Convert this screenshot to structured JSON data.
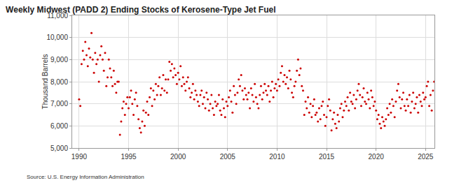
{
  "chart_data": {
    "type": "scatter",
    "title": "Weekly Midwest (PADD 2) Ending Stocks of Kerosene-Type Jet Fuel",
    "y_label": "Thousand Barrels",
    "annotations": [
      "Source: U.S. Energy Information Administration"
    ],
    "color": "#cc0000",
    "marker": "circle",
    "grid": true,
    "xlim": [
      1989.3,
      2025.9
    ],
    "xticks": [
      1990,
      1995,
      2000,
      2005,
      2010,
      2015,
      2020,
      2025
    ],
    "ylim": [
      5000,
      11000
    ],
    "yticks": [
      {
        "value": 5000,
        "label": "5,000"
      },
      {
        "value": 6000,
        "label": "6,000"
      },
      {
        "value": 7000,
        "label": "7,000"
      },
      {
        "value": 8000,
        "label": "8,000"
      },
      {
        "value": 9000,
        "label": "9,000"
      },
      {
        "value": 10000,
        "label": "10,000"
      },
      {
        "value": 11000,
        "label": "11,000"
      }
    ],
    "x": [
      1990,
      1990.125,
      1990.25,
      1990.375,
      1990.5,
      1990.625,
      1990.75,
      1990.875,
      1991,
      1991.125,
      1991.25,
      1991.375,
      1991.5,
      1991.625,
      1991.75,
      1991.875,
      1992,
      1992.125,
      1992.25,
      1992.375,
      1992.5,
      1992.625,
      1992.75,
      1992.875,
      1993,
      1993.125,
      1993.25,
      1993.375,
      1993.5,
      1993.625,
      1993.75,
      1993.875,
      1994,
      1994.125,
      1994.25,
      1994.375,
      1994.5,
      1994.625,
      1994.75,
      1994.875,
      1995,
      1995.125,
      1995.25,
      1995.375,
      1995.5,
      1995.625,
      1995.75,
      1995.875,
      1996,
      1996.125,
      1996.25,
      1996.375,
      1996.5,
      1996.625,
      1996.75,
      1996.875,
      1997,
      1997.125,
      1997.25,
      1997.375,
      1997.5,
      1997.625,
      1997.75,
      1997.875,
      1998,
      1998.125,
      1998.25,
      1998.375,
      1998.5,
      1998.625,
      1998.75,
      1998.875,
      1999,
      1999.125,
      1999.25,
      1999.375,
      1999.5,
      1999.625,
      1999.75,
      1999.875,
      2000,
      2000.125,
      2000.25,
      2000.375,
      2000.5,
      2000.625,
      2000.75,
      2000.875,
      2001,
      2001.125,
      2001.25,
      2001.375,
      2001.5,
      2001.625,
      2001.75,
      2001.875,
      2002,
      2002.125,
      2002.25,
      2002.375,
      2002.5,
      2002.625,
      2002.75,
      2002.875,
      2003,
      2003.125,
      2003.25,
      2003.375,
      2003.5,
      2003.625,
      2003.75,
      2003.875,
      2004,
      2004.125,
      2004.25,
      2004.375,
      2004.5,
      2004.625,
      2004.75,
      2004.875,
      2005,
      2005.125,
      2005.25,
      2005.375,
      2005.5,
      2005.625,
      2005.75,
      2005.875,
      2006,
      2006.125,
      2006.25,
      2006.375,
      2006.5,
      2006.625,
      2006.75,
      2006.875,
      2007,
      2007.125,
      2007.25,
      2007.375,
      2007.5,
      2007.625,
      2007.75,
      2007.875,
      2008,
      2008.125,
      2008.25,
      2008.375,
      2008.5,
      2008.625,
      2008.75,
      2008.875,
      2009,
      2009.125,
      2009.25,
      2009.375,
      2009.5,
      2009.625,
      2009.75,
      2009.875,
      2010,
      2010.125,
      2010.25,
      2010.375,
      2010.5,
      2010.625,
      2010.75,
      2010.875,
      2011,
      2011.125,
      2011.25,
      2011.375,
      2011.5,
      2011.625,
      2011.75,
      2011.875,
      2012,
      2012.125,
      2012.25,
      2012.375,
      2012.5,
      2012.625,
      2012.75,
      2012.875,
      2013,
      2013.125,
      2013.25,
      2013.375,
      2013.5,
      2013.625,
      2013.75,
      2013.875,
      2014,
      2014.125,
      2014.25,
      2014.375,
      2014.5,
      2014.625,
      2014.75,
      2014.875,
      2015,
      2015.125,
      2015.25,
      2015.375,
      2015.5,
      2015.625,
      2015.75,
      2015.875,
      2016,
      2016.125,
      2016.25,
      2016.375,
      2016.5,
      2016.625,
      2016.75,
      2016.875,
      2017,
      2017.125,
      2017.25,
      2017.375,
      2017.5,
      2017.625,
      2017.75,
      2017.875,
      2018,
      2018.125,
      2018.25,
      2018.375,
      2018.5,
      2018.625,
      2018.75,
      2018.875,
      2019,
      2019.125,
      2019.25,
      2019.375,
      2019.5,
      2019.625,
      2019.75,
      2019.875,
      2020,
      2020.125,
      2020.25,
      2020.375,
      2020.5,
      2020.625,
      2020.75,
      2020.875,
      2021,
      2021.125,
      2021.25,
      2021.375,
      2021.5,
      2021.625,
      2021.75,
      2021.875,
      2022,
      2022.125,
      2022.25,
      2022.375,
      2022.5,
      2022.625,
      2022.75,
      2022.875,
      2023,
      2023.125,
      2023.25,
      2023.375,
      2023.5,
      2023.625,
      2023.75,
      2023.875,
      2024,
      2024.125,
      2024.25,
      2024.375,
      2024.5,
      2024.625,
      2024.75,
      2024.875,
      2025,
      2025.125,
      2025.25,
      2025.375,
      2025.5,
      2025.625,
      2025.75,
      2025.875
    ],
    "values": [
      7200,
      6900,
      8800,
      9400,
      9000,
      9800,
      9200,
      8700,
      9500,
      9100,
      10200,
      9000,
      8400,
      9300,
      8800,
      9000,
      8000,
      9200,
      9600,
      9000,
      8500,
      9300,
      7800,
      8200,
      9000,
      8600,
      8200,
      7800,
      8500,
      7900,
      7500,
      8000,
      8000,
      5600,
      6200,
      6800,
      7100,
      6500,
      7000,
      7300,
      6800,
      7300,
      7600,
      7000,
      6500,
      7200,
      7500,
      6900,
      6300,
      5900,
      5700,
      6200,
      6700,
      6000,
      6600,
      7100,
      6500,
      7300,
      7700,
      6900,
      7600,
      7200,
      7900,
      7400,
      7800,
      8200,
      7400,
      7700,
      8300,
      7600,
      8100,
      7500,
      8100,
      8900,
      8500,
      8800,
      8200,
      8600,
      8300,
      7900,
      8400,
      8100,
      8700,
      7800,
      8200,
      7900,
      7600,
      8000,
      8200,
      7700,
      7300,
      7500,
      7900,
      7200,
      7600,
      7400,
      7100,
      6900,
      7400,
      7600,
      7000,
      7300,
      6800,
      7500,
      7200,
      6700,
      7000,
      7400,
      6800,
      6500,
      7100,
      6900,
      7000,
      7400,
      6700,
      6500,
      7200,
      6800,
      6400,
      7100,
      6900,
      7300,
      7600,
      7100,
      6600,
      7800,
      7400,
      7000,
      7500,
      8100,
      7800,
      8300,
      7600,
      7200,
      7700,
      7400,
      7200,
      7500,
      6800,
      7700,
      7400,
      7100,
      7900,
      7300,
      7000,
      6800,
      7400,
      7800,
      7200,
      7500,
      7900,
      7600,
      7400,
      7800,
      7100,
      7600,
      8000,
      7300,
      7700,
      7900,
      7600,
      8100,
      7800,
      8400,
      8700,
      8000,
      8300,
      7900,
      8200,
      7700,
      8500,
      8100,
      7500,
      7300,
      7800,
      8000,
      8500,
      9000,
      8300,
      8600,
      7800,
      7600,
      6500,
      7100,
      6800,
      7300,
      6600,
      7000,
      6400,
      6900,
      7200,
      6500,
      6600,
      6200,
      6800,
      6300,
      6900,
      7100,
      6500,
      6000,
      6400,
      6900,
      7200,
      6700,
      5800,
      6300,
      6600,
      6100,
      5900,
      6500,
      6200,
      6800,
      7000,
      6400,
      6700,
      7100,
      6900,
      7300,
      6700,
      7500,
      7100,
      7000,
      7400,
      6800,
      7200,
      7600,
      7900,
      7400,
      6900,
      7300,
      7700,
      7100,
      7000,
      7500,
      7200,
      6800,
      7600,
      7300,
      6900,
      7100,
      6700,
      6300,
      6500,
      6100,
      5900,
      6400,
      6200,
      6000,
      6300,
      6800,
      6500,
      7000,
      6600,
      7200,
      6900,
      6400,
      7100,
      7600,
      7900,
      7300,
      6800,
      7200,
      7500,
      6900,
      6700,
      7200,
      6900,
      7400,
      6600,
      7100,
      7500,
      6800,
      7000,
      7300,
      6600,
      7400,
      7100,
      6900,
      7500,
      7200,
      7300,
      7800,
      8000,
      6900,
      7400,
      6700,
      7600,
      8000
    ]
  }
}
